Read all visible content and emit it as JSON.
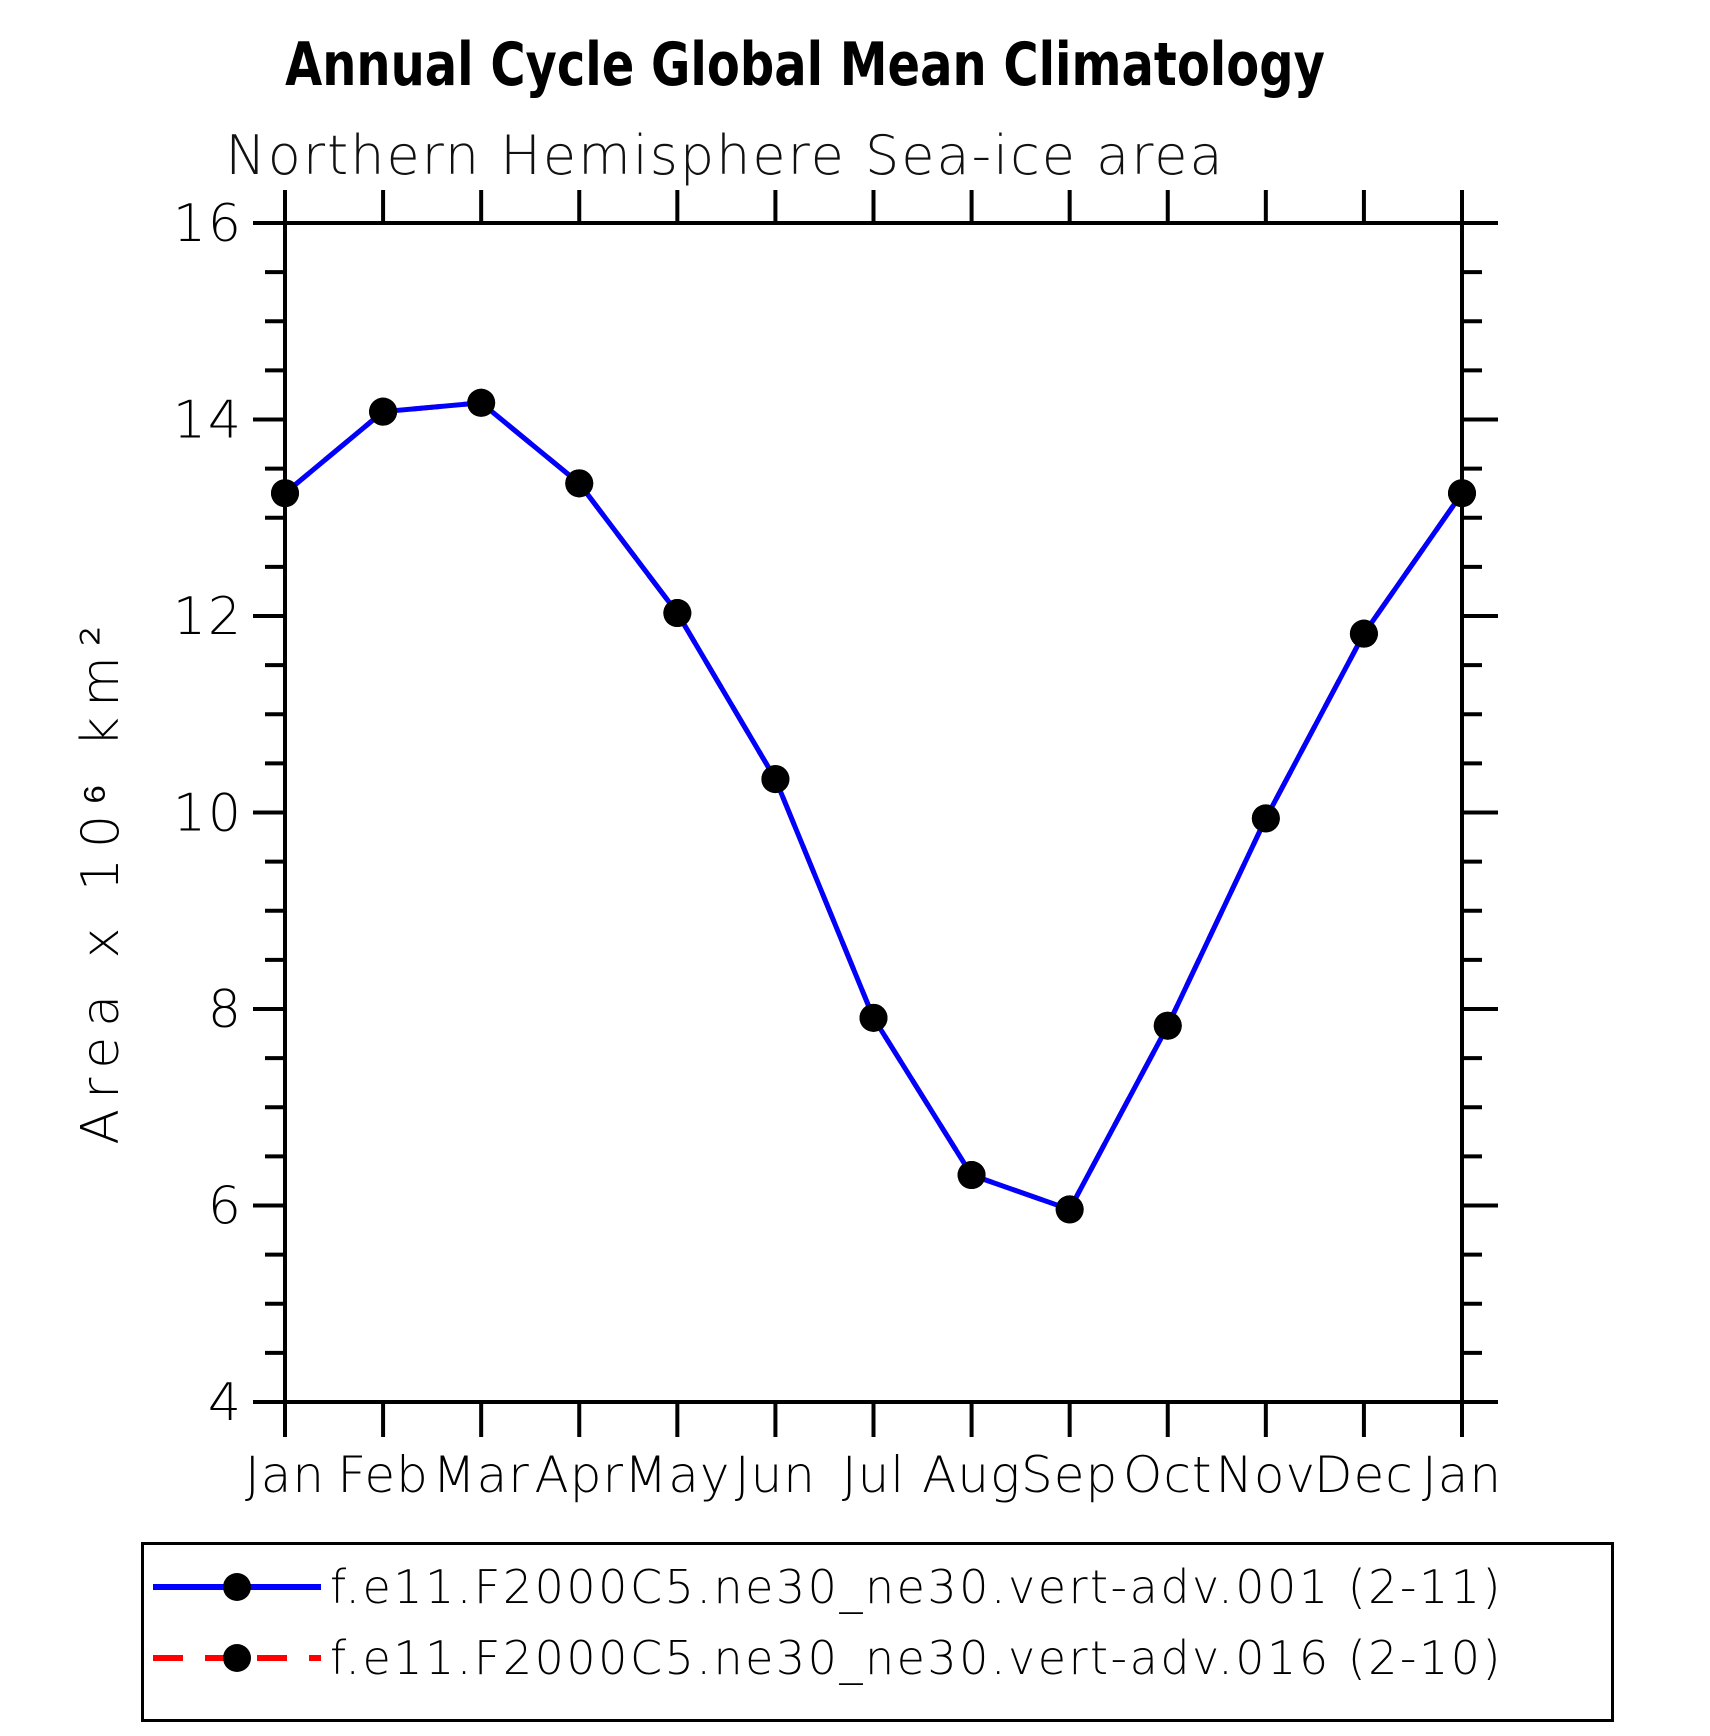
{
  "title": "Annual Cycle Global Mean Climatology",
  "subtitle": "Northern Hemisphere Sea-ice area",
  "chart_data": {
    "type": "line",
    "categories": [
      "Jan",
      "Feb",
      "Mar",
      "Apr",
      "May",
      "Jun",
      "Jul",
      "Aug",
      "Sep",
      "Oct",
      "Nov",
      "Dec",
      "Jan"
    ],
    "series": [
      {
        "name": "f.e11.F2000C5.ne30_ne30.vert-adv.001 (2-11)",
        "color": "#0000ff",
        "line_style": "solid",
        "marker": "filled-black-circle",
        "values": [
          13.25,
          14.08,
          14.17,
          13.35,
          12.03,
          10.34,
          7.91,
          6.31,
          5.96,
          7.83,
          9.94,
          11.82,
          13.25
        ]
      },
      {
        "name": "f.e11.F2000C5.ne30_ne30.vert-adv.016 (2-10)",
        "color": "#ff0000",
        "line_style": "dashed",
        "marker": "filled-black-circle",
        "values": [
          13.25,
          14.08,
          14.17,
          13.35,
          12.03,
          10.34,
          7.91,
          6.31,
          5.96,
          7.83,
          9.94,
          11.82,
          13.25
        ],
        "note": "curve coincides with series 1 and is hidden beneath it in the plot"
      }
    ],
    "xlabel": "",
    "ylabel": "Area x 10⁶ km²",
    "ylim": [
      4,
      16
    ],
    "ytick_major": [
      16,
      14,
      12,
      10,
      8,
      6,
      4
    ],
    "ytick_minor_step": 0.5,
    "grid": false,
    "tick_direction": "out",
    "legend_position": "bottom",
    "axis_color": "#000000",
    "marker_color": "#000000"
  }
}
